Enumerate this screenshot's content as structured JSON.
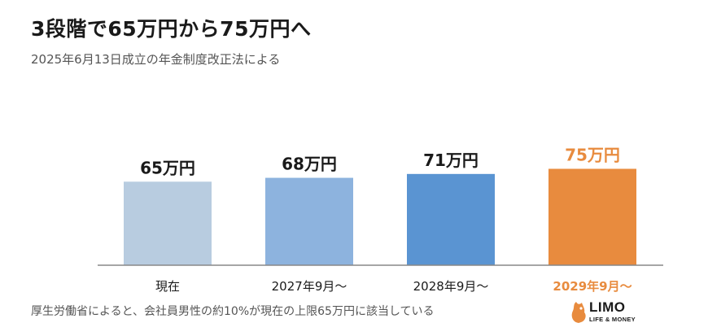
{
  "chart_data": {
    "type": "bar",
    "title": "3段階で65万円から75万円へ",
    "subtitle": "2025年6月13日成立の年金制度改正法による",
    "categories": [
      "現在",
      "2027年9月～",
      "2028年9月～",
      "2029年9月～"
    ],
    "values": [
      65,
      68,
      71,
      75
    ],
    "value_labels": [
      "65万円",
      "68万円",
      "71万円",
      "75万円"
    ],
    "unit": "万円",
    "bar_colors": [
      "#b8cce0",
      "#8db3de",
      "#5a94d2",
      "#e88b3e"
    ],
    "label_colors": [
      "#1a1a1a",
      "#1a1a1a",
      "#1a1a1a",
      "#e88b3e"
    ],
    "ylim": [
      0,
      80
    ],
    "grid": false,
    "legend": "none"
  },
  "footnote": "厚生労働省によると、会社員男性の約10%が現在の上限65万円に該当している",
  "logo": {
    "name": "LIMO",
    "tagline": "LIFE & MONEY",
    "color": "#e88b3e"
  }
}
